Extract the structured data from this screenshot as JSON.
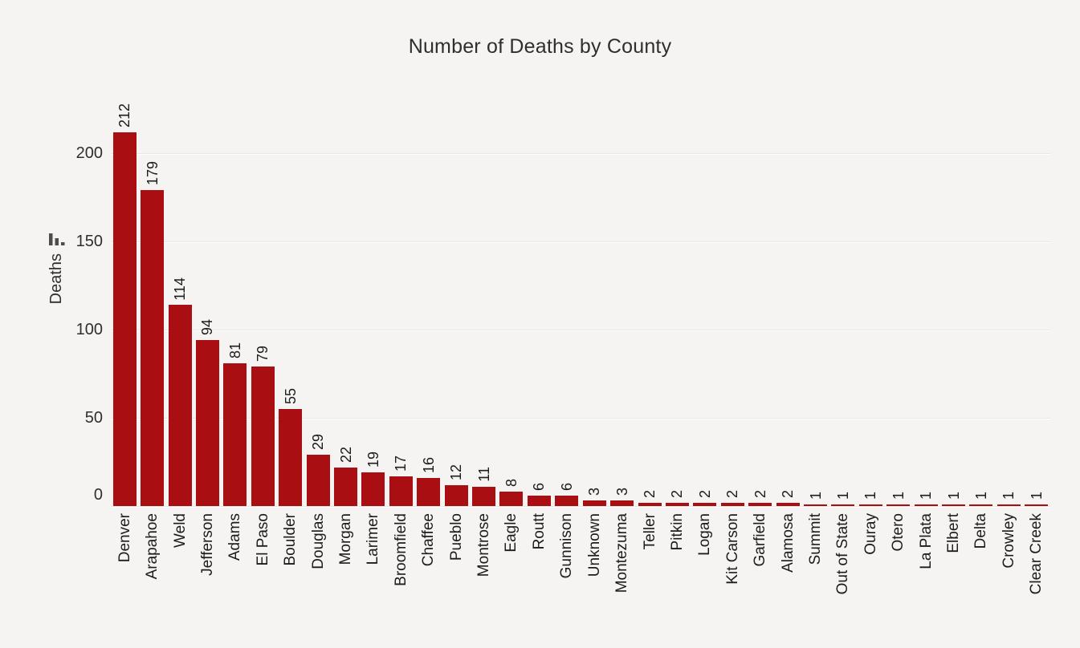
{
  "title": "Number of Deaths by County",
  "y_axis": {
    "label": "Deaths",
    "ticks": [
      "0",
      "50",
      "100",
      "150",
      "200"
    ],
    "sort_icon": "sort-descending"
  },
  "colors": {
    "bar": "#a90e13",
    "background": "#f5f4f2",
    "gridline": "#e9e7e3",
    "text": "#1f1f1f"
  },
  "chart_data": {
    "type": "bar",
    "title": "Number of Deaths by County",
    "xlabel": "",
    "ylabel": "Deaths",
    "categories": [
      "Denver",
      "Arapahoe",
      "Weld",
      "Jefferson",
      "Adams",
      "El Paso",
      "Boulder",
      "Douglas",
      "Morgan",
      "Larimer",
      "Broomfield",
      "Chaffee",
      "Pueblo",
      "Montrose",
      "Eagle",
      "Routt",
      "Gunnison",
      "Unknown",
      "Montezuma",
      "Teller",
      "Pitkin",
      "Logan",
      "Kit Carson",
      "Garfield",
      "Alamosa",
      "Summit",
      "Out of State",
      "Ouray",
      "Otero",
      "La Plata",
      "Elbert",
      "Delta",
      "Crowley",
      "Clear Creek"
    ],
    "values": [
      212,
      179,
      114,
      94,
      81,
      79,
      55,
      29,
      22,
      19,
      17,
      16,
      12,
      11,
      8,
      6,
      6,
      3,
      3,
      2,
      2,
      2,
      2,
      2,
      2,
      1,
      1,
      1,
      1,
      1,
      1,
      1,
      1,
      1
    ],
    "yticks": [
      0,
      50,
      100,
      150,
      200
    ],
    "ylim": [
      0,
      220
    ],
    "grid": "horizontal",
    "legend": "none",
    "sort": "descending",
    "bar_color": "#a90e13",
    "value_label_rotation": 90,
    "category_label_rotation": 90
  }
}
